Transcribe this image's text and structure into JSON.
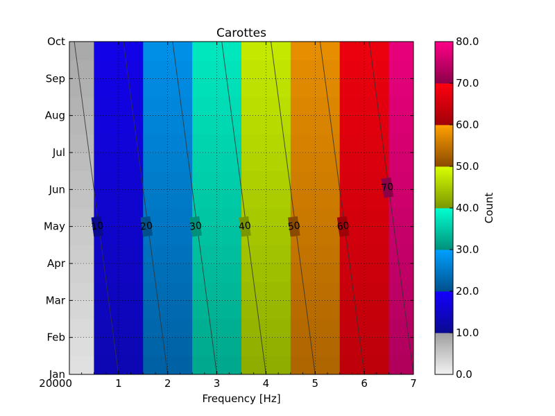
{
  "chart_data": {
    "type": "heatmap",
    "title": "Carottes",
    "xlabel": "Frequency [Hz]",
    "ylabel": "",
    "x_ticks": [
      {
        "value": 0,
        "label": "20000"
      },
      {
        "value": 1,
        "label": "1"
      },
      {
        "value": 2,
        "label": "2"
      },
      {
        "value": 3,
        "label": "3"
      },
      {
        "value": 4,
        "label": "4"
      },
      {
        "value": 5,
        "label": "5"
      },
      {
        "value": 6,
        "label": "6"
      },
      {
        "value": 7,
        "label": "7"
      }
    ],
    "y_ticks": [
      {
        "value": 0,
        "label": "Jan"
      },
      {
        "value": 1,
        "label": "Feb"
      },
      {
        "value": 2,
        "label": "Mar"
      },
      {
        "value": 3,
        "label": "Apr"
      },
      {
        "value": 4,
        "label": "May"
      },
      {
        "value": 5,
        "label": "Jun"
      },
      {
        "value": 6,
        "label": "Jul"
      },
      {
        "value": 7,
        "label": "Aug"
      },
      {
        "value": 8,
        "label": "Sep"
      },
      {
        "value": 9,
        "label": "Oct"
      }
    ],
    "xlim": [
      0,
      7
    ],
    "ylim": [
      0,
      9
    ],
    "grid": true,
    "columns": [
      {
        "x_start": 0.0,
        "x_end": 0.5,
        "value_bottom": 2,
        "value_top": 9
      },
      {
        "x_start": 0.5,
        "x_end": 1.5,
        "value_bottom": 13,
        "value_top": 18
      },
      {
        "x_start": 1.5,
        "x_end": 2.5,
        "value_bottom": 22,
        "value_top": 28
      },
      {
        "x_start": 2.5,
        "x_end": 3.5,
        "value_bottom": 32,
        "value_top": 38
      },
      {
        "x_start": 3.5,
        "x_end": 4.5,
        "value_bottom": 42,
        "value_top": 48
      },
      {
        "x_start": 4.5,
        "x_end": 5.5,
        "value_bottom": 53,
        "value_top": 58
      },
      {
        "x_start": 5.5,
        "x_end": 6.5,
        "value_bottom": 63,
        "value_top": 68
      },
      {
        "x_start": 6.5,
        "x_end": 7.0,
        "value_bottom": 73,
        "value_top": 78
      }
    ],
    "contours": [
      {
        "level": 10,
        "label": "10",
        "x_bottom": 1.0,
        "x_top": 0.1,
        "label_x": 0.57,
        "label_y": 4.0
      },
      {
        "level": 20,
        "label": "20",
        "x_bottom": 2.0,
        "x_top": 1.1,
        "label_x": 1.57,
        "label_y": 4.0
      },
      {
        "level": 30,
        "label": "30",
        "x_bottom": 3.0,
        "x_top": 2.1,
        "label_x": 2.57,
        "label_y": 4.0
      },
      {
        "level": 40,
        "label": "40",
        "x_bottom": 4.0,
        "x_top": 3.1,
        "label_x": 3.57,
        "label_y": 4.0
      },
      {
        "level": 50,
        "label": "50",
        "x_bottom": 5.0,
        "x_top": 4.1,
        "label_x": 4.57,
        "label_y": 4.0
      },
      {
        "level": 60,
        "label": "60",
        "x_bottom": 6.0,
        "x_top": 5.1,
        "label_x": 5.57,
        "label_y": 4.0
      },
      {
        "level": 70,
        "label": "70",
        "x_bottom": 7.0,
        "x_top": 6.1,
        "label_x": 6.47,
        "label_y": 5.05
      }
    ],
    "colorbar": {
      "label": "Count",
      "range": [
        0,
        80
      ],
      "ticks": [
        "0.0",
        "10.0",
        "20.0",
        "30.0",
        "40.0",
        "50.0",
        "60.0",
        "70.0",
        "80.0"
      ],
      "bands": [
        {
          "from": 0,
          "to": 10,
          "start_color": "#f2f2f2",
          "end_color": "#a0a0a0"
        },
        {
          "from": 10,
          "to": 20,
          "start_color": "#0a0a90",
          "end_color": "#1400ff"
        },
        {
          "from": 20,
          "to": 30,
          "start_color": "#00508c",
          "end_color": "#00a0ff"
        },
        {
          "from": 30,
          "to": 40,
          "start_color": "#00907a",
          "end_color": "#00ffd0"
        },
        {
          "from": 40,
          "to": 50,
          "start_color": "#7a9600",
          "end_color": "#d8ff00"
        },
        {
          "from": 50,
          "to": 60,
          "start_color": "#8a4a00",
          "end_color": "#ffa000"
        },
        {
          "from": 60,
          "to": 70,
          "start_color": "#a00008",
          "end_color": "#ff0010"
        },
        {
          "from": 70,
          "to": 80,
          "start_color": "#8c0048",
          "end_color": "#ff0088"
        }
      ]
    }
  }
}
